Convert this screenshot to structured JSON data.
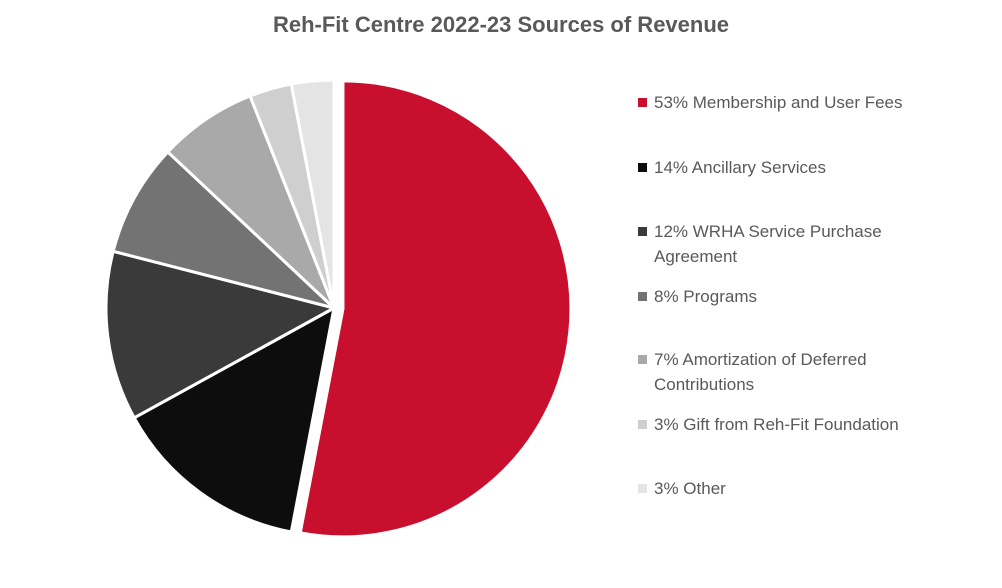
{
  "chart_data": {
    "type": "pie",
    "title": "Reh-Fit Centre 2022-23 Sources of Revenue",
    "legend_position": "right",
    "slices": [
      {
        "label": "53% Membership and User Fees",
        "value": 53,
        "color": "#C8102E"
      },
      {
        "label": "14% Ancillary Services",
        "value": 14,
        "color": "#0D0D0D"
      },
      {
        "label": "12% WRHA Service Purchase Agreement",
        "value": 12,
        "color": "#3A3A3A"
      },
      {
        "label": "8% Programs",
        "value": 8,
        "color": "#737373"
      },
      {
        "label": "7% Amortization of Deferred Contributions",
        "value": 7,
        "color": "#A9A9A9"
      },
      {
        "label": "3% Gift from Reh-Fit Foundation",
        "value": 3,
        "color": "#CFCFCF"
      },
      {
        "label": "3% Other",
        "value": 3,
        "color": "#E4E4E4"
      }
    ]
  }
}
